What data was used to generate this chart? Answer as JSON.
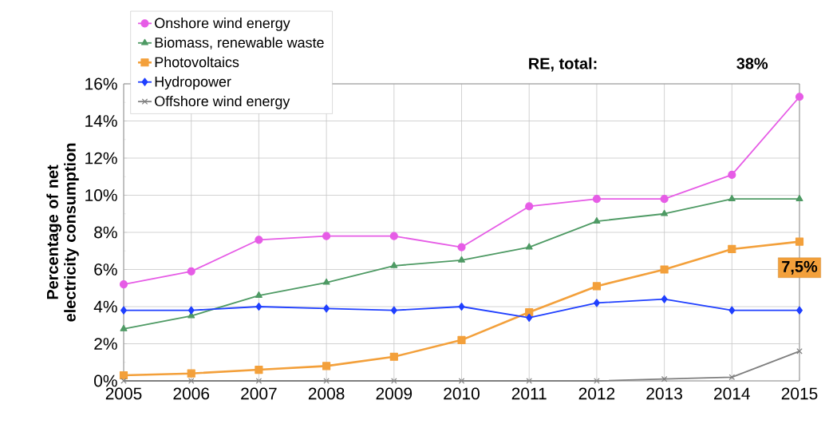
{
  "chart_data": {
    "type": "line",
    "ylabel": "Percentage of net electricity consumption",
    "x": [
      2005,
      2006,
      2007,
      2008,
      2009,
      2010,
      2011,
      2012,
      2013,
      2014,
      2015
    ],
    "series": [
      {
        "name": "Onshore wind energy",
        "color": "#e65ce6",
        "marker": "circle",
        "values": [
          5.2,
          5.9,
          7.6,
          7.8,
          7.8,
          7.2,
          9.4,
          9.8,
          9.8,
          11.1,
          15.3
        ]
      },
      {
        "name": "Biomass, renewable waste",
        "color": "#4e9a64",
        "marker": "triangle",
        "values": [
          2.8,
          3.5,
          4.6,
          5.3,
          6.2,
          6.5,
          7.2,
          8.6,
          9.0,
          9.8,
          9.8
        ]
      },
      {
        "name": "Photovoltaics",
        "color": "#f3a03b",
        "marker": "square",
        "values": [
          0.3,
          0.4,
          0.6,
          0.8,
          1.3,
          2.2,
          3.7,
          5.1,
          6.0,
          7.1,
          7.5
        ]
      },
      {
        "name": "Hydropower",
        "color": "#1f3fff",
        "marker": "diamond",
        "values": [
          3.8,
          3.8,
          4.0,
          3.9,
          3.8,
          4.0,
          3.4,
          4.2,
          4.4,
          3.8,
          3.8
        ]
      },
      {
        "name": "Offshore wind energy",
        "color": "#7f7f7f",
        "marker": "cross",
        "values": [
          0,
          0,
          0,
          0,
          0,
          0,
          0,
          0,
          0.1,
          0.2,
          1.6
        ]
      }
    ],
    "xlim": [
      2005,
      2015
    ],
    "xticks": [
      2005,
      2006,
      2007,
      2008,
      2009,
      2010,
      2011,
      2012,
      2013,
      2014,
      2015
    ],
    "ylim": [
      0,
      16
    ],
    "yticks": [
      {
        "value": 0,
        "label": "0%"
      },
      {
        "value": 2,
        "label": "2%"
      },
      {
        "value": 4,
        "label": "4%"
      },
      {
        "value": 6,
        "label": "6%"
      },
      {
        "value": 8,
        "label": "8%"
      },
      {
        "value": 10,
        "label": "10%"
      },
      {
        "value": 12,
        "label": "12%"
      },
      {
        "value": 14,
        "label": "14%"
      },
      {
        "value": 16,
        "label": "16%"
      }
    ],
    "grid": true,
    "legend": "top left",
    "annotations": [
      "RE, total:",
      "38%",
      {
        "text": "7,5%",
        "x": 2015,
        "y": 7.5
      }
    ]
  }
}
